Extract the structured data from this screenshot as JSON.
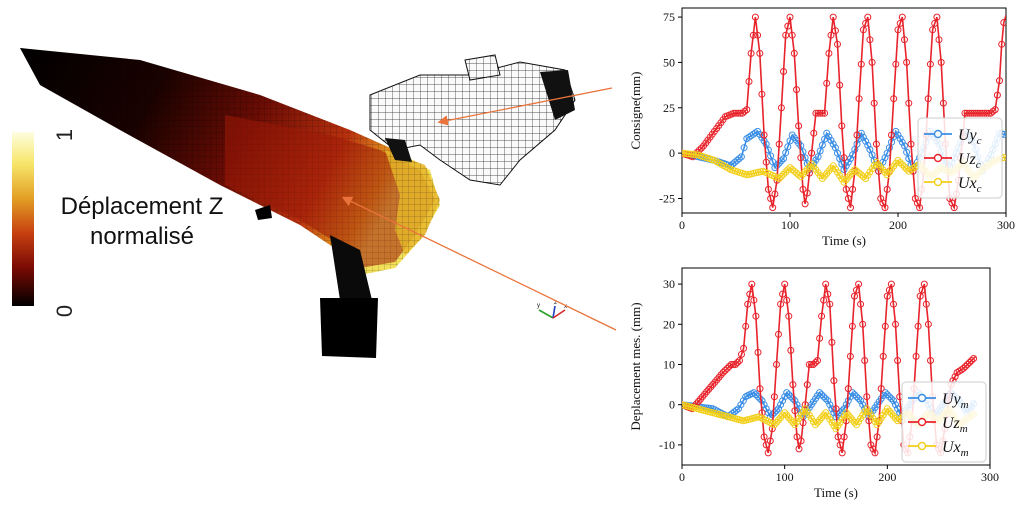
{
  "colorbar": {
    "label_line1": "Déplacement Z",
    "label_line2": "normalisé",
    "tick_max": "1",
    "tick_min": "0"
  },
  "triad": {
    "y": "y",
    "z": "z",
    "x": "x"
  },
  "colors": {
    "uy": "#3a8ee6",
    "uz": "#e8232b",
    "ux": "#f2cf1a"
  },
  "chart_data": [
    {
      "type": "line",
      "title": "",
      "xlabel": "Time (s)",
      "ylabel": "Consigne(mm)",
      "xlim": [
        0,
        300
      ],
      "ylim": [
        -33,
        80
      ],
      "xticks": [
        0,
        100,
        200,
        300
      ],
      "yticks": [
        -25,
        0,
        25,
        50,
        75
      ],
      "legend_position": "right",
      "series": [
        {
          "name": "Uy",
          "sub": "c",
          "key": "uy",
          "x": [
            0,
            30,
            45,
            55,
            60,
            70,
            78,
            86,
            94,
            102,
            110,
            118,
            126,
            134,
            142,
            150,
            158,
            166,
            174,
            182,
            190,
            198,
            206,
            214,
            222,
            230,
            238,
            246,
            254,
            262,
            270,
            278,
            286,
            294,
            300
          ],
          "y": [
            0,
            -4,
            -7,
            -2,
            8,
            12,
            5,
            -8,
            -3,
            10,
            4,
            -9,
            -2,
            11,
            3,
            -9,
            -1,
            11,
            2,
            -10,
            0,
            12,
            4,
            -10,
            0,
            12,
            5,
            -10,
            0,
            12,
            6,
            -10,
            -1,
            11,
            10
          ]
        },
        {
          "name": "Uz",
          "sub": "c",
          "key": "uz",
          "x": [
            0,
            10,
            20,
            30,
            40,
            48,
            52,
            56,
            60,
            64,
            68,
            72,
            76,
            80,
            84,
            88,
            92,
            96,
            100,
            104,
            108,
            112,
            114,
            116,
            120,
            124,
            128,
            132,
            136,
            140,
            144,
            148,
            152,
            156,
            160,
            164,
            168,
            172,
            176,
            180,
            184,
            188,
            192,
            196,
            200,
            204,
            208,
            212,
            216,
            220,
            224,
            228,
            232,
            236,
            240,
            244,
            248,
            252,
            256,
            262,
            268,
            274,
            280,
            286,
            290,
            294,
            296,
            298,
            300
          ],
          "y": [
            0,
            -2,
            4,
            12,
            20,
            22,
            22,
            22,
            24,
            55,
            75,
            55,
            10,
            -20,
            -30,
            -15,
            25,
            65,
            75,
            55,
            15,
            -20,
            -28,
            -22,
            0,
            22,
            22,
            22,
            55,
            75,
            60,
            15,
            -20,
            -30,
            -10,
            30,
            68,
            75,
            50,
            5,
            -25,
            -30,
            -10,
            30,
            68,
            75,
            50,
            5,
            -25,
            -30,
            -10,
            30,
            68,
            75,
            50,
            5,
            -25,
            -30,
            -15,
            22,
            22,
            22,
            22,
            22,
            24,
            40,
            60,
            72,
            76
          ]
        },
        {
          "name": "Ux",
          "sub": "c",
          "key": "ux",
          "x": [
            0,
            15,
            30,
            45,
            60,
            75,
            90,
            100,
            110,
            120,
            130,
            140,
            150,
            160,
            170,
            180,
            190,
            200,
            210,
            220,
            230,
            240,
            250,
            260,
            270,
            280,
            290,
            300
          ],
          "y": [
            0,
            -1,
            -4,
            -9,
            -12,
            -10,
            -14,
            -8,
            -13,
            -6,
            -14,
            -7,
            -16,
            -9,
            -14,
            -5,
            -12,
            -4,
            -10,
            -6,
            -13,
            -8,
            -11,
            -5,
            -14,
            -8,
            -4,
            -2
          ]
        }
      ]
    },
    {
      "type": "line",
      "title": "",
      "xlabel": "Time (s)",
      "ylabel": "Deplacement mes. (mm)",
      "xlim": [
        0,
        300
      ],
      "ylim": [
        -15,
        34
      ],
      "xticks": [
        0,
        100,
        200,
        300
      ],
      "yticks": [
        -10,
        0,
        10,
        20,
        30
      ],
      "legend_position": "right",
      "series": [
        {
          "name": "Uy",
          "sub": "m",
          "key": "uy",
          "x": [
            0,
            30,
            45,
            55,
            62,
            70,
            78,
            86,
            94,
            102,
            110,
            118,
            126,
            134,
            142,
            150,
            158,
            166,
            174,
            182,
            190,
            198,
            206,
            214,
            222,
            230,
            238,
            246,
            254,
            262,
            270,
            278,
            286
          ],
          "y": [
            0,
            -1,
            -3,
            -1,
            2,
            3,
            1,
            -3,
            -1,
            3,
            1,
            -3,
            0,
            3,
            1,
            -3,
            -1,
            3,
            1,
            -3,
            0,
            3,
            1,
            -3,
            0,
            3,
            1,
            -3,
            0,
            3,
            1,
            -2,
            1
          ]
        },
        {
          "name": "Uz",
          "sub": "m",
          "key": "uz",
          "x": [
            0,
            10,
            20,
            30,
            40,
            48,
            52,
            56,
            60,
            64,
            68,
            72,
            76,
            80,
            84,
            88,
            92,
            96,
            100,
            104,
            108,
            112,
            114,
            116,
            120,
            124,
            128,
            132,
            136,
            140,
            144,
            148,
            152,
            156,
            160,
            164,
            168,
            172,
            176,
            180,
            184,
            188,
            192,
            196,
            200,
            204,
            208,
            212,
            216,
            220,
            224,
            228,
            232,
            236,
            240,
            244,
            248,
            252,
            256,
            262,
            268,
            274,
            278,
            282,
            286
          ],
          "y": [
            0,
            -1,
            2,
            5,
            8,
            10,
            10,
            11,
            14,
            25,
            30,
            22,
            4,
            -8,
            -12,
            -6,
            10,
            25,
            30,
            22,
            5,
            -8,
            -11,
            -9,
            0,
            10,
            10,
            11,
            22,
            30,
            25,
            6,
            -8,
            -12,
            -4,
            12,
            27,
            30,
            20,
            2,
            -10,
            -12,
            -4,
            12,
            27,
            30,
            20,
            2,
            -10,
            -12,
            -4,
            12,
            27,
            30,
            20,
            2,
            -10,
            -12,
            -6,
            5,
            8,
            9,
            10,
            11,
            12
          ]
        },
        {
          "name": "Ux",
          "sub": "m",
          "key": "ux",
          "x": [
            0,
            15,
            30,
            45,
            60,
            75,
            90,
            100,
            110,
            120,
            130,
            140,
            150,
            160,
            170,
            180,
            190,
            200,
            210,
            220,
            230,
            240,
            250,
            260,
            270,
            280,
            286
          ],
          "y": [
            0,
            -1,
            -2,
            -3,
            -4,
            -3,
            -5,
            -2,
            -5,
            -1,
            -5,
            -2,
            -6,
            -2,
            -5,
            -1,
            -5,
            -1,
            -4,
            -2,
            -5,
            -2,
            -4,
            -1,
            -5,
            -3,
            -2
          ]
        }
      ]
    }
  ]
}
